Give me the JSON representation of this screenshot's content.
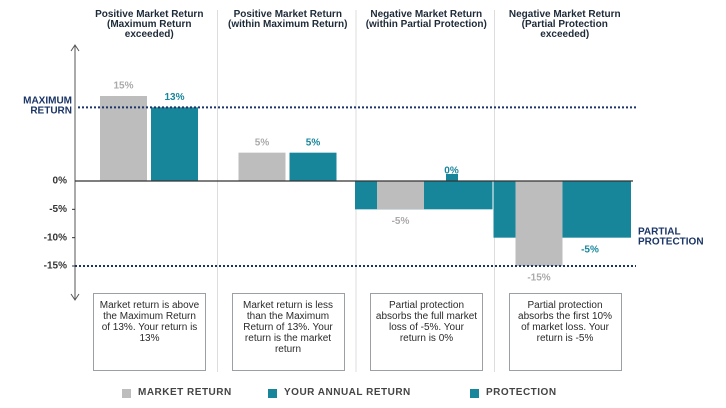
{
  "chart_data": {
    "type": "bar",
    "categories": [
      "Positive Market Return (Maximum Return exceeded)",
      "Positive Market Return (within Maximum Return)",
      "Negative Market Return (within Partial Protection)",
      "Negative Market Return (Partial Protection exceeded)"
    ],
    "series": [
      {
        "name": "MARKET RETURN",
        "color": "#bdbdbd",
        "values": [
          15,
          5,
          -5,
          -15
        ],
        "value_labels": [
          "15%",
          "5%",
          "-5%",
          "-15%"
        ]
      },
      {
        "name": "YOUR ANNUAL RETURN",
        "color": "#17869b",
        "values": [
          13,
          5,
          0,
          -5
        ],
        "value_labels": [
          "13%",
          "5%",
          "0%",
          "-5%"
        ]
      },
      {
        "name": "PROTECTION",
        "color": "#17869b",
        "values": [
          0,
          0,
          -5,
          -10
        ]
      }
    ],
    "ylim": [
      -21,
      24
    ],
    "yticks": [
      {
        "value": 0,
        "label": "0%"
      },
      {
        "value": -5,
        "label": "-5%"
      },
      {
        "value": -10,
        "label": "-10%"
      },
      {
        "value": -15,
        "label": "-15%"
      }
    ],
    "reference_lines": [
      {
        "label": "MAXIMUM RETURN",
        "value": 13
      },
      {
        "label": "PARTIAL PROTECTION",
        "value": -15
      }
    ],
    "notes": [
      "Market return is above the Maximum Return of 13%. Your return is 13%",
      "Market return is less than the Maximum Return of 13%. Your return is the market return",
      "Partial protection absorbs the full market loss of -5%. Your return is 0%",
      "Partial protection absorbs the first 10% of market loss. Your return is -5%"
    ]
  }
}
